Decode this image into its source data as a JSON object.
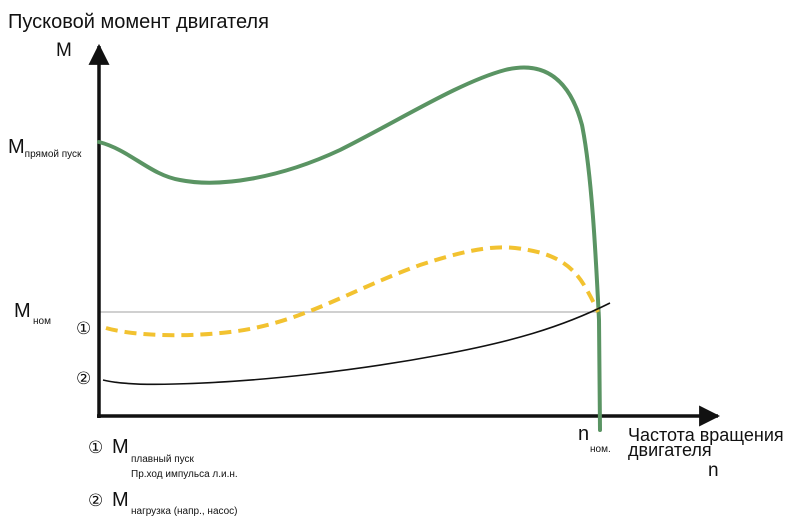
{
  "title": "Пусковой момент двигателя",
  "y_axis": {
    "label": "M"
  },
  "x_axis": {
    "label_line1": "Частота вращения",
    "label_line2": "двигателя",
    "symbol": "n"
  },
  "y_markers": {
    "direct_start": {
      "main": "M",
      "sub": "прямой пуск"
    },
    "nominal": {
      "main": "M",
      "sub": "ном"
    }
  },
  "x_markers": {
    "nominal": {
      "main": "n",
      "sub": "ном."
    }
  },
  "curve_markers": {
    "c1": "①",
    "c2": "②"
  },
  "legend": [
    {
      "symbol": "①",
      "main": "M",
      "sub_line1": "плавный пуск",
      "sub_line2": "Пр.ход импульса л.и.н."
    },
    {
      "symbol": "②",
      "main": "M",
      "sub_line1": "нагрузка (напр., насос)"
    }
  ],
  "colors": {
    "direct_start_curve": "#5a9463",
    "soft_start_curve": "#f2c230",
    "load_curve": "#111111",
    "axis": "#111111",
    "nominal_line": "#b5b5b5"
  },
  "chart_data": {
    "type": "line",
    "title": "Пусковой момент двигателя",
    "xlabel": "Частота вращения двигателя n",
    "ylabel": "M",
    "note": "qualitative curves, no numeric scale; values relative: x in fractions of n_ном, y in fractions of M_ном",
    "x_ticks": [
      "n ном."
    ],
    "y_ticks": [
      "M прямой пуск",
      "M ном"
    ],
    "series": [
      {
        "name": "M прямой пуск",
        "style": "solid",
        "x": [
          0,
          0.13,
          0.28,
          0.5,
          0.72,
          0.84,
          0.89,
          0.93,
          0.97,
          1.0,
          1.01
        ],
        "y": [
          1.88,
          1.53,
          1.45,
          1.6,
          2.13,
          2.54,
          2.56,
          2.45,
          1.93,
          0.0,
          -0.6
        ]
      },
      {
        "name": "M плавный пуск",
        "style": "dashed",
        "x": [
          0,
          0.1,
          0.22,
          0.45,
          0.72,
          0.84,
          0.89,
          0.95,
          1.0
        ],
        "y": [
          -0.11,
          -0.18,
          -0.13,
          0.2,
          0.55,
          0.67,
          0.67,
          0.4,
          0.0
        ]
      },
      {
        "name": "M нагрузка (напр., насос)",
        "style": "solid",
        "x": [
          0,
          0.1,
          0.3,
          0.55,
          0.8,
          1.0,
          1.03
        ],
        "y": [
          -0.7,
          -0.74,
          -0.72,
          -0.6,
          -0.37,
          -0.05,
          0.04
        ]
      }
    ]
  }
}
